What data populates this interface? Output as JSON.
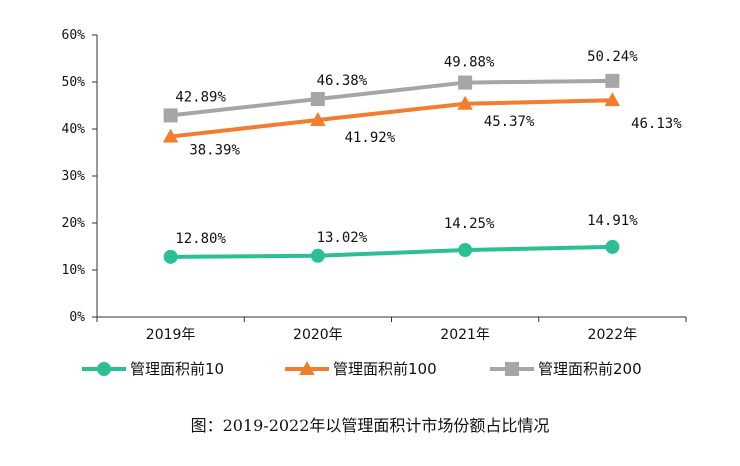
{
  "chart_data": {
    "type": "line",
    "title": "",
    "xlabel": "",
    "ylabel": "",
    "categories": [
      "2019年",
      "2020年",
      "2021年",
      "2022年"
    ],
    "ylim": [
      0,
      60
    ],
    "yticks": [
      0,
      10,
      20,
      30,
      40,
      50,
      60
    ],
    "ytick_labels": [
      "0%",
      "10%",
      "20%",
      "30%",
      "40%",
      "50%",
      "60%"
    ],
    "grid": false,
    "legend_position": "bottom",
    "series": [
      {
        "name": "管理面积前10",
        "color": "#2bbf95",
        "marker": "circle",
        "values": [
          12.8,
          13.02,
          14.25,
          14.91
        ],
        "labels": [
          "12.80%",
          "13.02%",
          "14.25%",
          "14.91%"
        ]
      },
      {
        "name": "管理面积前100",
        "color": "#f37c2f",
        "marker": "triangle",
        "values": [
          38.39,
          41.92,
          45.37,
          46.13
        ],
        "labels": [
          "38.39%",
          "41.92%",
          "45.37%",
          "46.13%"
        ]
      },
      {
        "name": "管理面积前200",
        "color": "#a6a6a6",
        "marker": "square",
        "values": [
          42.89,
          46.38,
          49.88,
          50.24
        ],
        "labels": [
          "42.89%",
          "46.38%",
          "49.88%",
          "50.24%"
        ]
      }
    ]
  },
  "caption": "图：2019-2022年以管理面积计市场份额占比情况"
}
